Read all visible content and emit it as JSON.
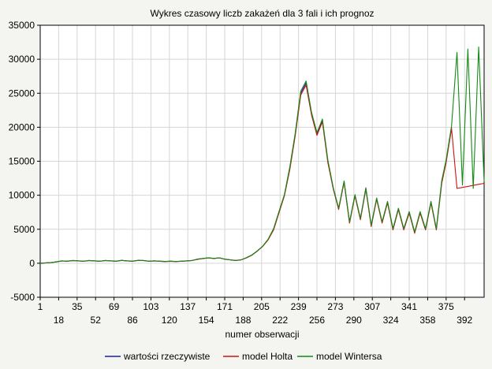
{
  "chart_data": {
    "type": "line",
    "title": "Wykres czasowy liczb zakażeń dla 3 fali i ich prognoz",
    "xlabel": "numer obserwacji",
    "ylabel": "",
    "xlim": [
      1,
      410
    ],
    "ylim": [
      -5000,
      35000
    ],
    "grid": true,
    "legend_position": "bottom",
    "y_ticks": [
      -5000,
      0,
      5000,
      10000,
      15000,
      20000,
      25000,
      30000,
      35000
    ],
    "x_ticks_top_row": [
      1,
      35,
      69,
      103,
      137,
      171,
      205,
      239,
      273,
      307,
      341,
      375
    ],
    "x_ticks_bottom_row": [
      18,
      52,
      86,
      120,
      154,
      188,
      222,
      256,
      290,
      324,
      358,
      392
    ],
    "x": [
      1,
      6,
      11,
      16,
      21,
      26,
      31,
      36,
      41,
      46,
      51,
      56,
      61,
      66,
      71,
      76,
      81,
      86,
      91,
      96,
      101,
      106,
      111,
      116,
      121,
      126,
      131,
      136,
      141,
      146,
      151,
      156,
      161,
      166,
      171,
      176,
      181,
      186,
      191,
      196,
      201,
      206,
      211,
      216,
      221,
      226,
      231,
      236,
      241,
      246,
      251,
      256,
      261,
      266,
      271,
      276,
      281,
      286,
      291,
      296,
      301,
      306,
      311,
      316,
      321,
      326,
      331,
      336,
      341,
      346,
      351,
      356,
      361,
      366,
      371,
      375,
      380,
      385,
      390,
      395,
      400,
      405,
      410
    ],
    "series": [
      {
        "name": "wartości rzeczywiste",
        "color": "#1b1bb5",
        "values": [
          0,
          50,
          100,
          200,
          350,
          300,
          400,
          350,
          300,
          400,
          350,
          300,
          400,
          350,
          300,
          420,
          350,
          300,
          420,
          400,
          300,
          350,
          300,
          250,
          300,
          250,
          300,
          350,
          400,
          600,
          700,
          800,
          700,
          800,
          600,
          500,
          400,
          500,
          800,
          1200,
          1800,
          2500,
          3500,
          5000,
          7500,
          10000,
          14000,
          19000,
          25000,
          26500,
          22000,
          19000,
          21000,
          15000,
          11000,
          8000,
          12000,
          6000,
          10000,
          6500,
          11000,
          5500,
          9500,
          6000,
          9000,
          5000,
          8000,
          5000,
          7500,
          4500,
          7500,
          5000,
          9000,
          5000,
          12000,
          15000,
          20000,
          null,
          null,
          null,
          null,
          null,
          null
        ]
      },
      {
        "name": "model Holta",
        "color": "#cc1111",
        "values": [
          0,
          60,
          90,
          210,
          330,
          320,
          380,
          360,
          310,
          390,
          360,
          310,
          390,
          360,
          310,
          410,
          360,
          310,
          410,
          390,
          310,
          340,
          310,
          260,
          290,
          260,
          290,
          340,
          410,
          580,
          690,
          790,
          710,
          790,
          610,
          510,
          410,
          510,
          780,
          1180,
          1780,
          2480,
          3450,
          4900,
          7400,
          9900,
          13800,
          18800,
          24700,
          26200,
          21800,
          18800,
          20800,
          14800,
          10900,
          7900,
          11900,
          5900,
          9900,
          6400,
          10900,
          5400,
          9400,
          5900,
          8900,
          4900,
          7900,
          4900,
          7400,
          4400,
          7400,
          4900,
          8900,
          4900,
          11800,
          14800,
          19800,
          11000,
          11150,
          11300,
          11450,
          11600,
          11750
        ]
      },
      {
        "name": "model Wintersa",
        "color": "#138a13",
        "values": [
          0,
          40,
          110,
          190,
          360,
          290,
          410,
          340,
          290,
          410,
          340,
          290,
          410,
          340,
          290,
          430,
          340,
          290,
          430,
          410,
          290,
          360,
          290,
          240,
          310,
          240,
          310,
          360,
          390,
          620,
          710,
          810,
          690,
          810,
          590,
          490,
          390,
          490,
          820,
          1220,
          1820,
          2520,
          3550,
          5100,
          7600,
          10100,
          14200,
          19200,
          25300,
          26800,
          22200,
          19200,
          21200,
          15200,
          11100,
          8100,
          12100,
          6100,
          10100,
          6600,
          11100,
          5600,
          9600,
          6100,
          9100,
          5100,
          8100,
          5100,
          7600,
          4600,
          7600,
          5100,
          9100,
          5100,
          12200,
          15200,
          20200,
          31000,
          11500,
          31500,
          11000,
          31800,
          12000
        ]
      }
    ]
  }
}
